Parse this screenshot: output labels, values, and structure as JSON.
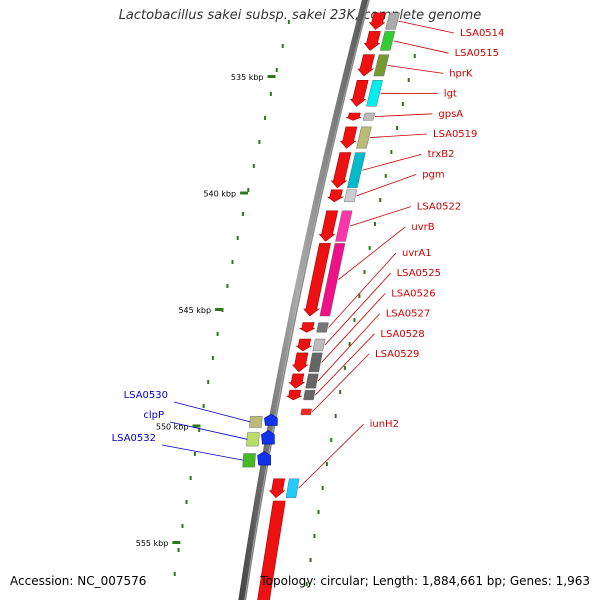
{
  "title": "Lactobacillus sakei subsp. sakei 23K, complete genome",
  "footer": {
    "accession": "Accession: NC_007576",
    "topology": "Topology: circular; Length: 1,884,661 bp; Genes: 1,963"
  },
  "colors": {
    "backbone": "#777777",
    "tick": "#2a7a1a",
    "forward_label": "#0000cc",
    "reverse_label": "#cc0000"
  },
  "kbp_ticks": [
    {
      "kb": 535,
      "label": "535 kbp"
    },
    {
      "kb": 540,
      "label": "540 kbp"
    },
    {
      "kb": 545,
      "label": "545 kbp"
    },
    {
      "kb": 550,
      "label": "550 kbp"
    },
    {
      "kb": 555,
      "label": "555 kbp"
    }
  ],
  "genes": {
    "reverse": [
      {
        "name": "LSA0514",
        "strand": "-",
        "start_kb": 532.2,
        "end_kb": 533.0,
        "color": "#aaaaaa"
      },
      {
        "name": "LSA0515",
        "strand": "-",
        "start_kb": 533.0,
        "end_kb": 533.9,
        "color": "#33cc33"
      },
      {
        "name": "hprK",
        "strand": "-",
        "start_kb": 534.0,
        "end_kb": 535.0,
        "color": "#779933"
      },
      {
        "name": "lgt",
        "strand": "-",
        "start_kb": 535.1,
        "end_kb": 536.3,
        "color": "#00eeee"
      },
      {
        "name": "gpsA",
        "strand": "-",
        "start_kb": 536.5,
        "end_kb": 536.9,
        "color": "#bbbbbb"
      },
      {
        "name": "LSA0519",
        "strand": "-",
        "start_kb": 537.1,
        "end_kb": 538.1,
        "color": "#bbbb77"
      },
      {
        "name": "trxB2",
        "strand": "-",
        "start_kb": 538.2,
        "end_kb": 539.8,
        "color": "#00bbcc"
      },
      {
        "name": "pgm",
        "strand": "-",
        "start_kb": 539.8,
        "end_kb": 540.4,
        "color": "#cccccc"
      },
      {
        "name": "LSA0522",
        "strand": "-",
        "start_kb": 540.7,
        "end_kb": 542.1,
        "color": "#ff33aa"
      },
      {
        "name": "uvrB",
        "strand": "-",
        "start_kb": 542.1,
        "end_kb": 545.3,
        "color": "#ee1188"
      },
      {
        "name": "uvrA1",
        "strand": "-",
        "start_kb": 545.5,
        "end_kb": 546.0,
        "color": "#777777"
      },
      {
        "name": "LSA0525",
        "strand": "-",
        "start_kb": 546.2,
        "end_kb": 546.8,
        "color": "#bbbbbb"
      },
      {
        "name": "LSA0526",
        "strand": "-",
        "start_kb": 546.8,
        "end_kb": 547.7,
        "color": "#666666"
      },
      {
        "name": "LSA0527",
        "strand": "-",
        "start_kb": 547.7,
        "end_kb": 548.4,
        "color": "#666666"
      },
      {
        "name": "LSA0528",
        "strand": "-",
        "start_kb": 548.4,
        "end_kb": 548.9,
        "color": "#666666"
      },
      {
        "name": "LSA0529",
        "strand": "-",
        "start_kb": 549.2,
        "end_kb": 549.3,
        "color": "#ff2222"
      },
      {
        "name": "iunH2",
        "strand": "-",
        "start_kb": 552.2,
        "end_kb": 553.1,
        "color": "#22ccff"
      }
    ],
    "forward": [
      {
        "name": "LSA0530",
        "strand": "+",
        "start_kb": 549.6,
        "end_kb": 550.0,
        "color": "#bbbb77"
      },
      {
        "name": "clpP",
        "strand": "+",
        "start_kb": 550.3,
        "end_kb": 550.8,
        "color": "#bbdd66"
      },
      {
        "name": "LSA0532",
        "strand": "+",
        "start_kb": 551.2,
        "end_kb": 551.7,
        "color": "#44bb22"
      }
    ]
  }
}
